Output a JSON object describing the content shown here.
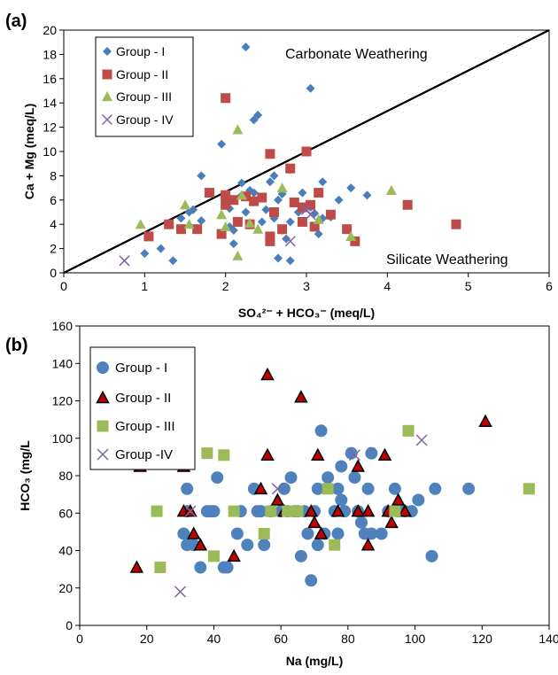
{
  "chart_data": [
    {
      "panel": "(a)",
      "type": "scatter",
      "xlabel": "SO₄²⁻ + HCO₃⁻ (meq/L)",
      "ylabel": "Ca + Mg (meq/L)",
      "xlim": [
        0,
        6
      ],
      "ylim": [
        0,
        20
      ],
      "xticks": [
        0,
        1,
        2,
        3,
        4,
        5,
        6
      ],
      "yticks": [
        0,
        2,
        4,
        6,
        8,
        10,
        12,
        14,
        16,
        18,
        20
      ],
      "grid": false,
      "legend_position": "top-left",
      "reference_line": {
        "from": [
          0,
          0
        ],
        "to": [
          6,
          20
        ]
      },
      "annotations": [
        "Carbonate Weathering",
        "Silicate Weathering"
      ],
      "series": [
        {
          "name": "Group - I",
          "marker": "diamond",
          "color": "#4a7ebb",
          "points": [
            [
              2.25,
              18.6
            ],
            [
              3.05,
              15.2
            ],
            [
              2.4,
              13.0
            ],
            [
              2.35,
              12.6
            ],
            [
              1.7,
              8.0
            ],
            [
              1.95,
              10.6
            ],
            [
              2.2,
              7.4
            ],
            [
              2.55,
              7.5
            ],
            [
              2.6,
              8.0
            ],
            [
              2.7,
              6.5
            ],
            [
              2.8,
              8.5
            ],
            [
              3.2,
              7.5
            ],
            [
              3.4,
              6.0
            ],
            [
              3.75,
              6.4
            ],
            [
              3.55,
              7.0
            ],
            [
              1.55,
              5.0
            ],
            [
              1.45,
              4.5
            ],
            [
              1.6,
              5.2
            ],
            [
              1.7,
              4.3
            ],
            [
              2.0,
              6.0
            ],
            [
              2.05,
              5.3
            ],
            [
              2.05,
              3.8
            ],
            [
              2.1,
              3.5
            ],
            [
              2.1,
              2.4
            ],
            [
              2.2,
              6.4
            ],
            [
              2.25,
              5.0
            ],
            [
              2.3,
              6.8
            ],
            [
              2.35,
              6.6
            ],
            [
              2.45,
              4.2
            ],
            [
              2.5,
              5.2
            ],
            [
              2.65,
              6.0
            ],
            [
              2.6,
              4.5
            ],
            [
              2.7,
              3.5
            ],
            [
              2.75,
              2.8
            ],
            [
              2.8,
              4.2
            ],
            [
              2.9,
              5.0
            ],
            [
              2.95,
              6.6
            ],
            [
              3.05,
              5.4
            ],
            [
              3.1,
              4.9
            ],
            [
              3.15,
              3.2
            ],
            [
              3.2,
              4.5
            ],
            [
              3.3,
              4.6
            ],
            [
              1.0,
              1.6
            ],
            [
              1.2,
              2.0
            ],
            [
              1.35,
              1.0
            ],
            [
              2.65,
              1.2
            ],
            [
              2.8,
              1.0
            ]
          ]
        },
        {
          "name": "Group - II",
          "marker": "square",
          "color": "#be4b48",
          "points": [
            [
              2.0,
              14.4
            ],
            [
              2.55,
              9.8
            ],
            [
              3.0,
              10.0
            ],
            [
              2.8,
              8.6
            ],
            [
              2.0,
              6.4
            ],
            [
              1.8,
              6.6
            ],
            [
              2.1,
              6.0
            ],
            [
              2.25,
              6.3
            ],
            [
              2.35,
              5.9
            ],
            [
              2.45,
              6.2
            ],
            [
              2.6,
              5.0
            ],
            [
              2.85,
              5.8
            ],
            [
              2.95,
              5.4
            ],
            [
              3.05,
              5.6
            ],
            [
              3.15,
              6.6
            ],
            [
              2.0,
              5.6
            ],
            [
              2.15,
              4.2
            ],
            [
              2.3,
              4.0
            ],
            [
              2.55,
              3.0
            ],
            [
              2.7,
              3.6
            ],
            [
              2.95,
              4.2
            ],
            [
              3.1,
              3.8
            ],
            [
              3.3,
              4.8
            ],
            [
              1.3,
              4.0
            ],
            [
              1.45,
              3.6
            ],
            [
              1.65,
              3.6
            ],
            [
              1.95,
              3.2
            ],
            [
              2.55,
              2.6
            ],
            [
              3.5,
              3.6
            ],
            [
              3.6,
              2.6
            ],
            [
              4.25,
              5.6
            ],
            [
              4.85,
              4.0
            ],
            [
              1.05,
              3.0
            ]
          ]
        },
        {
          "name": "Group - III",
          "marker": "triangle",
          "color": "#9bbb59",
          "points": [
            [
              2.15,
              11.8
            ],
            [
              0.95,
              4.0
            ],
            [
              1.5,
              5.6
            ],
            [
              1.55,
              4.0
            ],
            [
              1.95,
              4.8
            ],
            [
              2.0,
              3.8
            ],
            [
              2.2,
              6.4
            ],
            [
              2.3,
              4.1
            ],
            [
              2.4,
              3.6
            ],
            [
              2.7,
              7.0
            ],
            [
              3.15,
              4.4
            ],
            [
              4.05,
              6.8
            ],
            [
              3.55,
              3.0
            ],
            [
              2.15,
              1.4
            ]
          ]
        },
        {
          "name": "Group  - IV",
          "marker": "x",
          "color": "#7f63a2",
          "points": [
            [
              0.75,
              1.0
            ],
            [
              2.8,
              2.6
            ],
            [
              3.05,
              4.8
            ],
            [
              3.0,
              5.2
            ]
          ]
        }
      ]
    },
    {
      "panel": "(b)",
      "type": "scatter",
      "xlabel": "Na (mg/L)",
      "ylabel": "HCO₃ (mg/L",
      "xlim": [
        0,
        140
      ],
      "ylim": [
        0,
        160
      ],
      "xticks": [
        0,
        20,
        40,
        60,
        80,
        100,
        120,
        140
      ],
      "yticks": [
        0,
        20,
        40,
        60,
        80,
        100,
        120,
        140,
        160
      ],
      "grid": false,
      "legend_position": "top-left",
      "series": [
        {
          "name": "Group - I",
          "marker": "circle",
          "color": "#4f81bd",
          "points": [
            [
              31,
              49
            ],
            [
              32,
              73
            ],
            [
              32,
              43
            ],
            [
              34,
              43
            ],
            [
              36,
              31
            ],
            [
              38,
              61
            ],
            [
              39,
              61
            ],
            [
              40,
              61
            ],
            [
              41,
              79
            ],
            [
              43,
              31
            ],
            [
              44,
              31
            ],
            [
              47,
              49
            ],
            [
              48,
              61
            ],
            [
              50,
              43
            ],
            [
              52,
              73
            ],
            [
              53,
              61
            ],
            [
              54,
              61
            ],
            [
              55,
              43
            ],
            [
              57,
              61
            ],
            [
              60,
              61
            ],
            [
              61,
              73
            ],
            [
              62,
              61
            ],
            [
              63,
              79
            ],
            [
              64,
              61
            ],
            [
              65,
              61
            ],
            [
              66,
              37
            ],
            [
              67,
              61
            ],
            [
              68,
              49
            ],
            [
              69,
              24
            ],
            [
              70,
              61
            ],
            [
              71,
              73
            ],
            [
              71,
              43
            ],
            [
              72,
              104
            ],
            [
              73,
              49
            ],
            [
              74,
              79
            ],
            [
              76,
              61
            ],
            [
              77,
              73
            ],
            [
              78,
              85
            ],
            [
              78,
              67
            ],
            [
              79,
              61
            ],
            [
              81,
              92
            ],
            [
              82,
              79
            ],
            [
              83,
              61
            ],
            [
              84,
              55
            ],
            [
              85,
              49
            ],
            [
              86,
              73
            ],
            [
              87,
              92
            ],
            [
              90,
              49
            ],
            [
              92,
              61
            ],
            [
              94,
              73
            ],
            [
              95,
              61
            ],
            [
              97,
              61
            ],
            [
              99,
              61
            ],
            [
              101,
              67
            ],
            [
              105,
              37
            ],
            [
              106,
              73
            ],
            [
              116,
              73
            ],
            [
              77,
              49
            ],
            [
              87,
              49
            ],
            [
              32,
              61
            ]
          ]
        },
        {
          "name": "Group - II",
          "marker": "triangle",
          "color": "#c00000",
          "points": [
            [
              17,
              31
            ],
            [
              18,
              85
            ],
            [
              31,
              85
            ],
            [
              31,
              61
            ],
            [
              33,
              61
            ],
            [
              34,
              49
            ],
            [
              36,
              43
            ],
            [
              46,
              37
            ],
            [
              54,
              73
            ],
            [
              56,
              91
            ],
            [
              56,
              134
            ],
            [
              59,
              67
            ],
            [
              61,
              61
            ],
            [
              66,
              122
            ],
            [
              69,
              61
            ],
            [
              70,
              55
            ],
            [
              71,
              91
            ],
            [
              72,
              49
            ],
            [
              77,
              61
            ],
            [
              83,
              61
            ],
            [
              83,
              85
            ],
            [
              86,
              43
            ],
            [
              86,
              61
            ],
            [
              91,
              91
            ],
            [
              92,
              61
            ],
            [
              93,
              55
            ],
            [
              95,
              67
            ],
            [
              97,
              61
            ],
            [
              121,
              109
            ]
          ]
        },
        {
          "name": "Group - III",
          "marker": "square",
          "color": "#9bbb59",
          "points": [
            [
              23,
              61
            ],
            [
              24,
              31
            ],
            [
              38,
              92
            ],
            [
              40,
              37
            ],
            [
              43,
              91
            ],
            [
              46,
              61
            ],
            [
              55,
              49
            ],
            [
              57,
              61
            ],
            [
              63,
              61
            ],
            [
              65,
              61
            ],
            [
              62,
              61
            ],
            [
              74,
              73
            ],
            [
              76,
              43
            ],
            [
              94,
              61
            ],
            [
              98,
              104
            ],
            [
              134,
              73
            ]
          ]
        },
        {
          "name": "Group -IV",
          "marker": "x",
          "color": "#8064a2",
          "points": [
            [
              30,
              18
            ],
            [
              33,
              61
            ],
            [
              59,
              73
            ],
            [
              82,
              91
            ],
            [
              102,
              99
            ]
          ]
        }
      ]
    }
  ]
}
